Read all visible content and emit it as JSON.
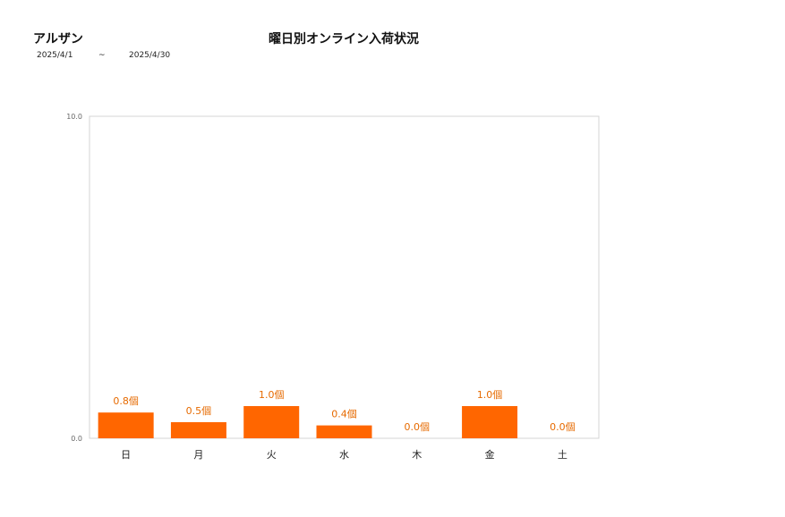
{
  "header": {
    "brand": "アルザン",
    "title": "曜日別オンライン入荷状況",
    "period_start": "2025/4/1",
    "period_sep": "~",
    "period_end": "2025/4/30"
  },
  "chart_data": {
    "type": "bar",
    "title": "曜日別オンライン入荷状況",
    "categories": [
      "日",
      "月",
      "火",
      "水",
      "木",
      "金",
      "土"
    ],
    "values": [
      0.8,
      0.5,
      1.0,
      0.4,
      0.0,
      1.0,
      0.0
    ],
    "data_labels": [
      "0.8個",
      "0.5個",
      "1.0個",
      "0.4個",
      "0.0個",
      "1.0個",
      "0.0個"
    ],
    "y_tick_labels": [
      "0.0",
      "10.0"
    ],
    "ylim": [
      0,
      10
    ],
    "grid": false,
    "legend": "none",
    "bar_color": "#ff6600",
    "label_color": "#e66a00"
  }
}
